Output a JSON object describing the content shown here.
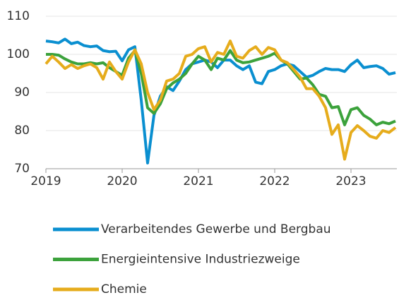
{
  "chart_data": {
    "type": "line",
    "categories": [
      "2019",
      null,
      null,
      null,
      null,
      null,
      null,
      null,
      null,
      null,
      null,
      null,
      "2020",
      null,
      null,
      null,
      null,
      null,
      null,
      null,
      null,
      null,
      null,
      null,
      "2021",
      null,
      null,
      null,
      null,
      null,
      null,
      null,
      null,
      null,
      null,
      null,
      "2022",
      null,
      null,
      null,
      null,
      null,
      null,
      null,
      null,
      null,
      null,
      null,
      "2023",
      null,
      null,
      null,
      null,
      null,
      null,
      null
    ],
    "series": [
      {
        "name": "Verarbeitendes Gewerbe und Bergbau",
        "color": "#0a8fd0",
        "values": [
          103.5,
          103.3,
          103.0,
          104.0,
          102.8,
          103.2,
          102.3,
          102.0,
          102.2,
          101.0,
          100.7,
          100.8,
          98.3,
          101.2,
          102.0,
          88.0,
          71.5,
          84.0,
          89.0,
          91.5,
          90.5,
          93.0,
          96.0,
          97.5,
          98.0,
          98.5,
          98.0,
          96.5,
          98.5,
          98.5,
          97.0,
          96.0,
          97.0,
          92.7,
          92.3,
          95.5,
          96.0,
          97.0,
          97.5,
          97.0,
          95.5,
          94.0,
          94.5,
          95.5,
          96.3,
          96.0,
          96.0,
          95.5,
          97.3,
          98.5,
          96.5,
          96.8,
          97.0,
          96.3,
          94.8,
          95.2
        ]
      },
      {
        "name": "Energieintensive Industriezweige",
        "color": "#3ca23c",
        "values": [
          100.0,
          100.0,
          99.8,
          98.8,
          98.0,
          97.5,
          97.5,
          97.8,
          97.5,
          97.8,
          96.5,
          95.5,
          94.5,
          99.0,
          101.0,
          95.0,
          86.0,
          84.5,
          87.0,
          91.0,
          92.5,
          93.5,
          95.0,
          97.5,
          99.5,
          98.5,
          96.0,
          99.0,
          98.5,
          101.0,
          98.5,
          97.8,
          98.0,
          98.5,
          99.0,
          99.5,
          100.3,
          98.5,
          97.5,
          95.5,
          93.5,
          93.8,
          92.0,
          89.5,
          89.0,
          86.0,
          86.3,
          81.5,
          85.5,
          86.0,
          84.0,
          83.0,
          81.5,
          82.2,
          81.8,
          82.5
        ]
      },
      {
        "name": "Chemie",
        "color": "#e6ac1c",
        "values": [
          97.5,
          99.5,
          98.0,
          96.3,
          97.3,
          96.3,
          97.0,
          97.5,
          96.5,
          93.5,
          98.0,
          95.5,
          93.5,
          98.0,
          101.2,
          97.5,
          90.0,
          85.5,
          88.0,
          93.0,
          93.5,
          95.0,
          99.5,
          100.0,
          101.5,
          102.0,
          98.0,
          100.5,
          100.0,
          103.5,
          99.5,
          99.0,
          101.0,
          102.0,
          100.0,
          101.8,
          101.2,
          98.5,
          97.8,
          96.0,
          94.0,
          91.0,
          91.0,
          89.0,
          86.0,
          79.0,
          81.5,
          72.5,
          79.5,
          81.3,
          80.0,
          78.5,
          78.0,
          80.0,
          79.5,
          80.8
        ]
      }
    ],
    "ylim": [
      70,
      110
    ],
    "yticks": [
      70,
      80,
      90,
      100,
      110
    ],
    "grid": true
  }
}
